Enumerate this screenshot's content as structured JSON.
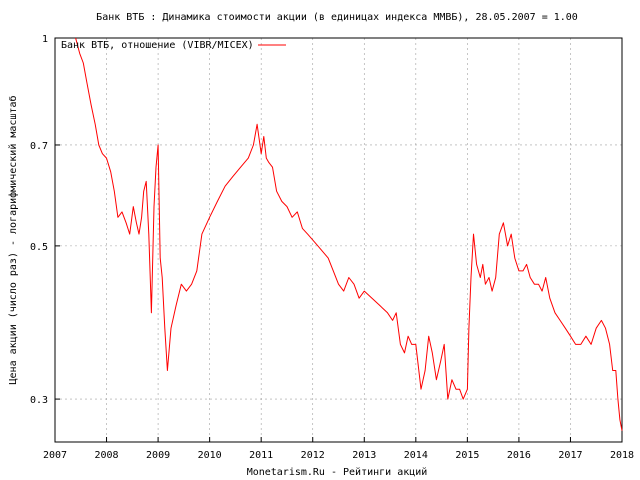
{
  "chart_data": {
    "type": "line",
    "title": "Банк ВТБ : Динамика стоимости акции (в единицах индекса ММВБ), 28.05.2007 = 1.00",
    "xlabel": "Monetarism.Ru - Рейтинги акций",
    "ylabel": "Цена акции (число раз) - логарифмический масштаб",
    "y_scale": "log",
    "ylim": [
      0.26,
      1.0
    ],
    "xlim": [
      2007.0,
      2018.0
    ],
    "x_ticks": [
      2007,
      2008,
      2009,
      2010,
      2011,
      2012,
      2013,
      2014,
      2015,
      2016,
      2017,
      2018
    ],
    "y_ticks": [
      0.3,
      0.5,
      0.7,
      1
    ],
    "y_tick_labels": [
      "0.3",
      "0.5",
      "0.7",
      "1"
    ],
    "grid": true,
    "legend_position": "top-left",
    "series": [
      {
        "name": "Банк ВТБ, отношение (VIBR/MICEX)",
        "color": "#ff0000",
        "x": [
          2007.4,
          2007.48,
          2007.55,
          2007.62,
          2007.7,
          2007.78,
          2007.85,
          2007.92,
          2008.0,
          2008.08,
          2008.15,
          2008.22,
          2008.3,
          2008.38,
          2008.45,
          2008.52,
          2008.58,
          2008.63,
          2008.68,
          2008.72,
          2008.77,
          2008.82,
          2008.87,
          2008.92,
          2008.96,
          2009.0,
          2009.04,
          2009.08,
          2009.13,
          2009.18,
          2009.25,
          2009.35,
          2009.45,
          2009.55,
          2009.65,
          2009.75,
          2009.85,
          2010.0,
          2010.15,
          2010.3,
          2010.45,
          2010.6,
          2010.75,
          2010.85,
          2010.92,
          2011.0,
          2011.05,
          2011.1,
          2011.15,
          2011.22,
          2011.3,
          2011.4,
          2011.5,
          2011.6,
          2011.7,
          2011.8,
          2011.9,
          2012.0,
          2012.1,
          2012.2,
          2012.3,
          2012.4,
          2012.5,
          2012.6,
          2012.7,
          2012.8,
          2012.9,
          2013.0,
          2013.15,
          2013.3,
          2013.45,
          2013.55,
          2013.62,
          2013.7,
          2013.78,
          2013.85,
          2013.92,
          2014.0,
          2014.1,
          2014.18,
          2014.25,
          2014.32,
          2014.4,
          2014.48,
          2014.55,
          2014.62,
          2014.7,
          2014.78,
          2014.85,
          2014.92,
          2015.0,
          2015.03,
          2015.07,
          2015.12,
          2015.18,
          2015.25,
          2015.3,
          2015.35,
          2015.42,
          2015.48,
          2015.55,
          2015.62,
          2015.7,
          2015.78,
          2015.85,
          2015.92,
          2016.0,
          2016.08,
          2016.15,
          2016.22,
          2016.3,
          2016.38,
          2016.45,
          2016.52,
          2016.6,
          2016.7,
          2016.8,
          2016.9,
          2017.0,
          2017.1,
          2017.2,
          2017.3,
          2017.4,
          2017.5,
          2017.6,
          2017.68,
          2017.76,
          2017.82,
          2017.88,
          2017.92,
          2017.96,
          2018.0
        ],
        "y": [
          1.0,
          0.95,
          0.92,
          0.86,
          0.8,
          0.75,
          0.7,
          0.68,
          0.67,
          0.64,
          0.6,
          0.55,
          0.56,
          0.54,
          0.52,
          0.57,
          0.54,
          0.52,
          0.55,
          0.6,
          0.62,
          0.52,
          0.4,
          0.57,
          0.65,
          0.7,
          0.48,
          0.45,
          0.38,
          0.33,
          0.38,
          0.41,
          0.44,
          0.43,
          0.44,
          0.46,
          0.52,
          0.55,
          0.58,
          0.61,
          0.63,
          0.65,
          0.67,
          0.7,
          0.75,
          0.68,
          0.72,
          0.67,
          0.66,
          0.65,
          0.6,
          0.58,
          0.57,
          0.55,
          0.56,
          0.53,
          0.52,
          0.51,
          0.5,
          0.49,
          0.48,
          0.46,
          0.44,
          0.43,
          0.45,
          0.44,
          0.42,
          0.43,
          0.42,
          0.41,
          0.4,
          0.39,
          0.4,
          0.36,
          0.35,
          0.37,
          0.36,
          0.36,
          0.31,
          0.33,
          0.37,
          0.35,
          0.32,
          0.34,
          0.36,
          0.3,
          0.32,
          0.31,
          0.31,
          0.3,
          0.31,
          0.38,
          0.45,
          0.52,
          0.47,
          0.45,
          0.47,
          0.44,
          0.45,
          0.43,
          0.45,
          0.52,
          0.54,
          0.5,
          0.52,
          0.48,
          0.46,
          0.46,
          0.47,
          0.45,
          0.44,
          0.44,
          0.43,
          0.45,
          0.42,
          0.4,
          0.39,
          0.38,
          0.37,
          0.36,
          0.36,
          0.37,
          0.36,
          0.38,
          0.39,
          0.38,
          0.36,
          0.33,
          0.33,
          0.3,
          0.28,
          0.27
        ]
      }
    ]
  }
}
